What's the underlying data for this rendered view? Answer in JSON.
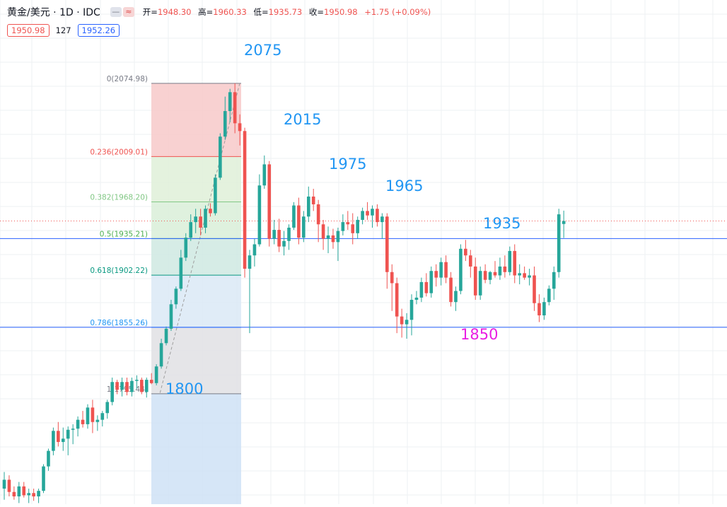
{
  "header": {
    "symbol": "黄金/美元 · 1D · IDC",
    "btn_hide": "—",
    "btn_compare": "≈",
    "open_label": "开=",
    "open": "1948.30",
    "high_label": "高=",
    "high": "1960.33",
    "low_label": "低=",
    "low": "1935.73",
    "close_label": "收=",
    "close": "1950.98",
    "change": "+1.75 (+0.09%)"
  },
  "quotes": {
    "bid": "1950.98",
    "spread": "127",
    "ask": "1952.26"
  },
  "colors": {
    "up": "#26a69a",
    "down": "#ef5350",
    "price_line": "#ef5350",
    "level_line": "#2962ff",
    "annotation": "#2196f3",
    "annotation_magenta": "#e91ee3"
  },
  "chart_data": {
    "type": "candlestick",
    "grid": true,
    "y_scale": {
      "top": 2150,
      "bottom": 1696
    },
    "fibonacci": {
      "levels": [
        {
          "label": "0(2074.98)",
          "ratio": 0,
          "price": 2074.98,
          "color": "#787b86",
          "fill": "#f7c9c9"
        },
        {
          "label": "0.236(2009.01)",
          "ratio": 0.236,
          "price": 2009.01,
          "color": "#ef5350",
          "fill": "#dff0d8"
        },
        {
          "label": "0.382(1968.20)",
          "ratio": 0.382,
          "price": 1968.2,
          "color": "#81c784",
          "fill": "#d9eed8"
        },
        {
          "label": "0.5(1935.21)",
          "ratio": 0.5,
          "price": 1935.21,
          "color": "#4caf50",
          "fill": "#cfe9e2"
        },
        {
          "label": "0.618(1902.22)",
          "ratio": 0.618,
          "price": 1902.22,
          "color": "#089981",
          "fill": "#dbe9f6"
        },
        {
          "label": "0.786(1855.26)",
          "ratio": 0.786,
          "price": 1855.26,
          "color": "#2196f3",
          "fill": "#e0e1e4"
        },
        {
          "label": "1(1795.44)",
          "ratio": 1,
          "price": 1795.44,
          "color": "#787b86",
          "fill": "#cfe2f6"
        }
      ]
    },
    "horizontal_lines": [
      1935.21,
      1855.26
    ],
    "current_price": 1950.98,
    "annotations": [
      {
        "text": "2075",
        "color": "#2196f3"
      },
      {
        "text": "2015",
        "color": "#2196f3"
      },
      {
        "text": "1975",
        "color": "#2196f3"
      },
      {
        "text": "1965",
        "color": "#2196f3"
      },
      {
        "text": "1935",
        "color": "#2196f3"
      },
      {
        "text": "1850",
        "color": "#e91ee3"
      },
      {
        "text": "1800",
        "color": "#2196f3"
      }
    ],
    "candles": [
      {
        "o": 1710,
        "h": 1725,
        "l": 1700,
        "c": 1718
      },
      {
        "o": 1718,
        "h": 1722,
        "l": 1703,
        "c": 1707
      },
      {
        "o": 1707,
        "h": 1712,
        "l": 1700,
        "c": 1703
      },
      {
        "o": 1703,
        "h": 1716,
        "l": 1697,
        "c": 1712
      },
      {
        "o": 1712,
        "h": 1716,
        "l": 1702,
        "c": 1704
      },
      {
        "o": 1704,
        "h": 1710,
        "l": 1697,
        "c": 1706
      },
      {
        "o": 1706,
        "h": 1710,
        "l": 1699,
        "c": 1703
      },
      {
        "o": 1703,
        "h": 1710,
        "l": 1697,
        "c": 1708
      },
      {
        "o": 1708,
        "h": 1732,
        "l": 1706,
        "c": 1730
      },
      {
        "o": 1730,
        "h": 1746,
        "l": 1726,
        "c": 1744
      },
      {
        "o": 1744,
        "h": 1765,
        "l": 1740,
        "c": 1762
      },
      {
        "o": 1762,
        "h": 1770,
        "l": 1748,
        "c": 1752
      },
      {
        "o": 1752,
        "h": 1765,
        "l": 1744,
        "c": 1755
      },
      {
        "o": 1755,
        "h": 1766,
        "l": 1740,
        "c": 1763
      },
      {
        "o": 1763,
        "h": 1768,
        "l": 1750,
        "c": 1764
      },
      {
        "o": 1764,
        "h": 1775,
        "l": 1757,
        "c": 1772
      },
      {
        "o": 1772,
        "h": 1780,
        "l": 1765,
        "c": 1768
      },
      {
        "o": 1768,
        "h": 1786,
        "l": 1764,
        "c": 1783
      },
      {
        "o": 1783,
        "h": 1790,
        "l": 1760,
        "c": 1770
      },
      {
        "o": 1770,
        "h": 1776,
        "l": 1762,
        "c": 1772
      },
      {
        "o": 1772,
        "h": 1780,
        "l": 1766,
        "c": 1778
      },
      {
        "o": 1778,
        "h": 1790,
        "l": 1773,
        "c": 1788
      },
      {
        "o": 1788,
        "h": 1810,
        "l": 1785,
        "c": 1806
      },
      {
        "o": 1806,
        "h": 1808,
        "l": 1795,
        "c": 1799
      },
      {
        "o": 1799,
        "h": 1810,
        "l": 1793,
        "c": 1806
      },
      {
        "o": 1806,
        "h": 1810,
        "l": 1794,
        "c": 1797
      },
      {
        "o": 1797,
        "h": 1810,
        "l": 1793,
        "c": 1807
      },
      {
        "o": 1807,
        "h": 1812,
        "l": 1800,
        "c": 1808
      },
      {
        "o": 1808,
        "h": 1810,
        "l": 1795,
        "c": 1797
      },
      {
        "o": 1797,
        "h": 1810,
        "l": 1792,
        "c": 1808
      },
      {
        "o": 1808,
        "h": 1814,
        "l": 1804,
        "c": 1805
      },
      {
        "o": 1805,
        "h": 1822,
        "l": 1803,
        "c": 1820
      },
      {
        "o": 1820,
        "h": 1845,
        "l": 1818,
        "c": 1841
      },
      {
        "o": 1841,
        "h": 1856,
        "l": 1839,
        "c": 1854
      },
      {
        "o": 1854,
        "h": 1880,
        "l": 1852,
        "c": 1876
      },
      {
        "o": 1876,
        "h": 1892,
        "l": 1872,
        "c": 1890
      },
      {
        "o": 1890,
        "h": 1925,
        "l": 1888,
        "c": 1918
      },
      {
        "o": 1918,
        "h": 1940,
        "l": 1915,
        "c": 1936
      },
      {
        "o": 1936,
        "h": 1957,
        "l": 1933,
        "c": 1950
      },
      {
        "o": 1950,
        "h": 1962,
        "l": 1940,
        "c": 1955
      },
      {
        "o": 1955,
        "h": 1962,
        "l": 1938,
        "c": 1945
      },
      {
        "o": 1945,
        "h": 1965,
        "l": 1940,
        "c": 1962
      },
      {
        "o": 1962,
        "h": 1967,
        "l": 1955,
        "c": 1958
      },
      {
        "o": 1958,
        "h": 1993,
        "l": 1956,
        "c": 1990
      },
      {
        "o": 1990,
        "h": 2030,
        "l": 1988,
        "c": 2027
      },
      {
        "o": 2027,
        "h": 2063,
        "l": 2024,
        "c": 2050
      },
      {
        "o": 2050,
        "h": 2070,
        "l": 2040,
        "c": 2067
      },
      {
        "o": 2067,
        "h": 2075,
        "l": 2030,
        "c": 2039
      },
      {
        "o": 2039,
        "h": 2047,
        "l": 2019,
        "c": 2032
      },
      {
        "o": 2032,
        "h": 2035,
        "l": 1900,
        "c": 1908
      },
      {
        "o": 1908,
        "h": 1925,
        "l": 1850,
        "c": 1920
      },
      {
        "o": 1920,
        "h": 1935,
        "l": 1910,
        "c": 1930
      },
      {
        "o": 1930,
        "h": 1993,
        "l": 1928,
        "c": 1983
      },
      {
        "o": 1983,
        "h": 2010,
        "l": 1980,
        "c": 2002
      },
      {
        "o": 2002,
        "h": 2005,
        "l": 1928,
        "c": 1935
      },
      {
        "o": 1935,
        "h": 1952,
        "l": 1930,
        "c": 1943
      },
      {
        "o": 1943,
        "h": 1953,
        "l": 1923,
        "c": 1928
      },
      {
        "o": 1928,
        "h": 1942,
        "l": 1920,
        "c": 1933
      },
      {
        "o": 1933,
        "h": 1948,
        "l": 1925,
        "c": 1945
      },
      {
        "o": 1945,
        "h": 1968,
        "l": 1943,
        "c": 1965
      },
      {
        "o": 1965,
        "h": 1972,
        "l": 1930,
        "c": 1936
      },
      {
        "o": 1936,
        "h": 1960,
        "l": 1932,
        "c": 1955
      },
      {
        "o": 1955,
        "h": 1982,
        "l": 1950,
        "c": 1973
      },
      {
        "o": 1973,
        "h": 1980,
        "l": 1960,
        "c": 1966
      },
      {
        "o": 1966,
        "h": 1970,
        "l": 1932,
        "c": 1948
      },
      {
        "o": 1948,
        "h": 1952,
        "l": 1925,
        "c": 1935
      },
      {
        "o": 1935,
        "h": 1946,
        "l": 1922,
        "c": 1938
      },
      {
        "o": 1938,
        "h": 1944,
        "l": 1926,
        "c": 1932
      },
      {
        "o": 1932,
        "h": 1945,
        "l": 1915,
        "c": 1942
      },
      {
        "o": 1942,
        "h": 1957,
        "l": 1938,
        "c": 1950
      },
      {
        "o": 1950,
        "h": 1960,
        "l": 1943,
        "c": 1948
      },
      {
        "o": 1948,
        "h": 1958,
        "l": 1930,
        "c": 1940
      },
      {
        "o": 1940,
        "h": 1955,
        "l": 1935,
        "c": 1952
      },
      {
        "o": 1952,
        "h": 1963,
        "l": 1948,
        "c": 1960
      },
      {
        "o": 1960,
        "h": 1968,
        "l": 1952,
        "c": 1956
      },
      {
        "o": 1956,
        "h": 1965,
        "l": 1945,
        "c": 1962
      },
      {
        "o": 1962,
        "h": 1966,
        "l": 1946,
        "c": 1950
      },
      {
        "o": 1950,
        "h": 1958,
        "l": 1935,
        "c": 1955
      },
      {
        "o": 1955,
        "h": 1958,
        "l": 1890,
        "c": 1905
      },
      {
        "o": 1905,
        "h": 1912,
        "l": 1870,
        "c": 1895
      },
      {
        "o": 1895,
        "h": 1900,
        "l": 1850,
        "c": 1865
      },
      {
        "o": 1865,
        "h": 1872,
        "l": 1846,
        "c": 1858
      },
      {
        "o": 1858,
        "h": 1868,
        "l": 1845,
        "c": 1862
      },
      {
        "o": 1862,
        "h": 1885,
        "l": 1848,
        "c": 1880
      },
      {
        "o": 1880,
        "h": 1888,
        "l": 1876,
        "c": 1882
      },
      {
        "o": 1882,
        "h": 1900,
        "l": 1878,
        "c": 1896
      },
      {
        "o": 1896,
        "h": 1904,
        "l": 1883,
        "c": 1886
      },
      {
        "o": 1886,
        "h": 1910,
        "l": 1882,
        "c": 1906
      },
      {
        "o": 1906,
        "h": 1912,
        "l": 1892,
        "c": 1900
      },
      {
        "o": 1900,
        "h": 1918,
        "l": 1893,
        "c": 1914
      },
      {
        "o": 1914,
        "h": 1920,
        "l": 1895,
        "c": 1900
      },
      {
        "o": 1900,
        "h": 1905,
        "l": 1874,
        "c": 1878
      },
      {
        "o": 1878,
        "h": 1892,
        "l": 1870,
        "c": 1888
      },
      {
        "o": 1888,
        "h": 1930,
        "l": 1885,
        "c": 1926
      },
      {
        "o": 1926,
        "h": 1934,
        "l": 1915,
        "c": 1920
      },
      {
        "o": 1920,
        "h": 1925,
        "l": 1900,
        "c": 1910
      },
      {
        "o": 1910,
        "h": 1918,
        "l": 1880,
        "c": 1884
      },
      {
        "o": 1884,
        "h": 1910,
        "l": 1880,
        "c": 1906
      },
      {
        "o": 1906,
        "h": 1912,
        "l": 1895,
        "c": 1898
      },
      {
        "o": 1898,
        "h": 1906,
        "l": 1894,
        "c": 1905
      },
      {
        "o": 1905,
        "h": 1915,
        "l": 1900,
        "c": 1902
      },
      {
        "o": 1902,
        "h": 1918,
        "l": 1898,
        "c": 1910
      },
      {
        "o": 1910,
        "h": 1920,
        "l": 1900,
        "c": 1905
      },
      {
        "o": 1905,
        "h": 1928,
        "l": 1902,
        "c": 1924
      },
      {
        "o": 1924,
        "h": 1930,
        "l": 1895,
        "c": 1902
      },
      {
        "o": 1902,
        "h": 1912,
        "l": 1894,
        "c": 1904
      },
      {
        "o": 1904,
        "h": 1910,
        "l": 1898,
        "c": 1900
      },
      {
        "o": 1900,
        "h": 1908,
        "l": 1893,
        "c": 1902
      },
      {
        "o": 1902,
        "h": 1910,
        "l": 1870,
        "c": 1877
      },
      {
        "o": 1877,
        "h": 1885,
        "l": 1860,
        "c": 1866
      },
      {
        "o": 1866,
        "h": 1882,
        "l": 1862,
        "c": 1878
      },
      {
        "o": 1878,
        "h": 1893,
        "l": 1875,
        "c": 1890
      },
      {
        "o": 1890,
        "h": 1910,
        "l": 1880,
        "c": 1905
      },
      {
        "o": 1905,
        "h": 1962,
        "l": 1900,
        "c": 1957
      },
      {
        "o": 1948.3,
        "h": 1960.33,
        "l": 1935.73,
        "c": 1950.98
      }
    ]
  }
}
